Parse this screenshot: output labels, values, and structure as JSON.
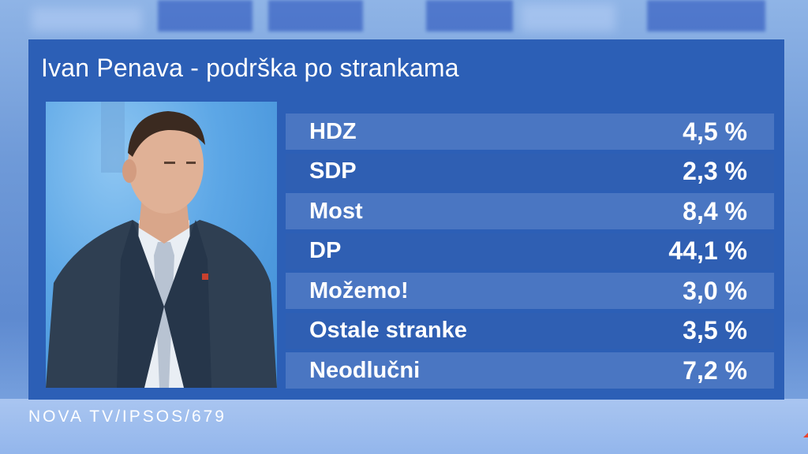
{
  "title": "Ivan Penava - podrška po strankama",
  "source": "NOVA TV/IPSOS/679",
  "rows": [
    {
      "party": "HDZ",
      "value": "4,5 %"
    },
    {
      "party": "SDP",
      "value": "2,3 %"
    },
    {
      "party": "Most",
      "value": "8,4 %"
    },
    {
      "party": "DP",
      "value": "44,1 %"
    },
    {
      "party": "Možemo!",
      "value": "3,0 %"
    },
    {
      "party": "Ostale stranke",
      "value": "3,5 %"
    },
    {
      "party": "Neodlučni",
      "value": "7,2 %"
    }
  ],
  "colors": {
    "panel": "#2c5fb6",
    "row_light": "#4a76c2",
    "row_dark": "#2f5fb3",
    "accent": "#e8432e",
    "text": "#ffffff"
  }
}
